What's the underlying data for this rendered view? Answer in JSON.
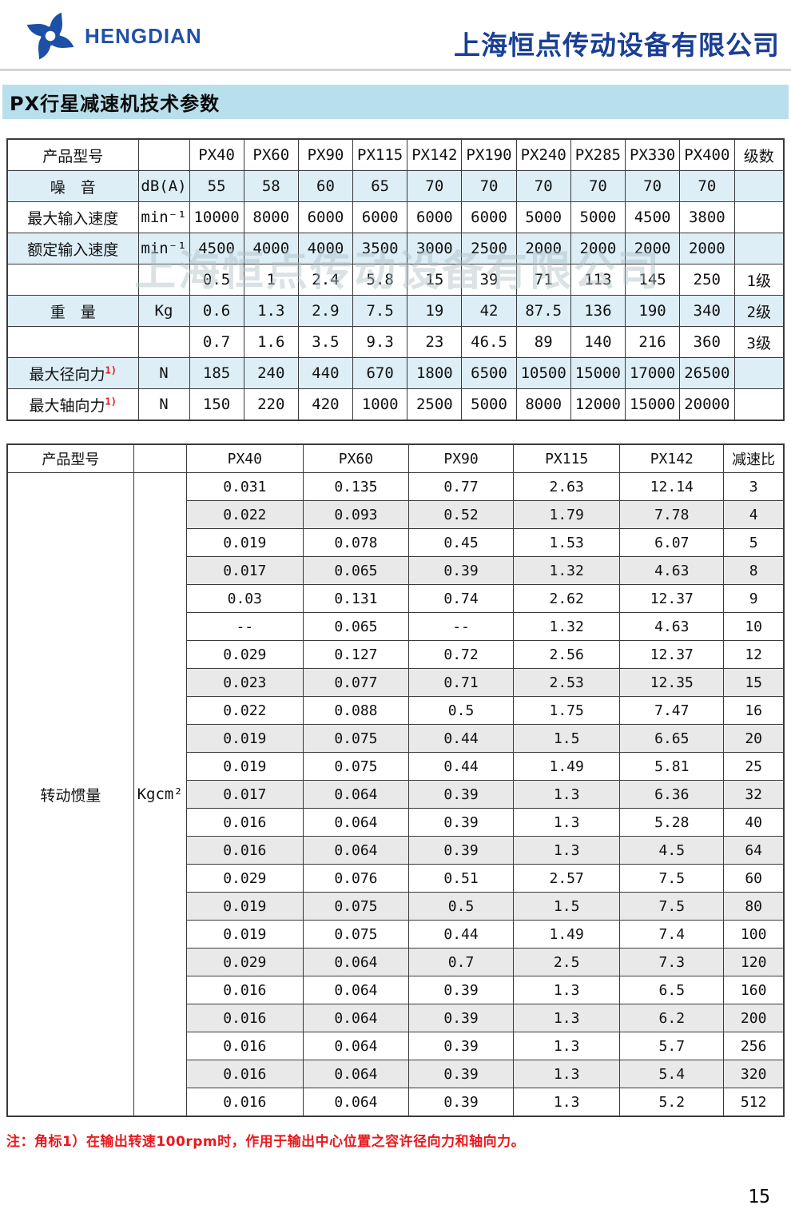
{
  "header": {
    "logo_text": "HENGDIAN",
    "company_name": "上海恒点传动设备有限公司"
  },
  "page_title": "PX行星减速机技术参数",
  "watermark": "上海恒点传动设备有限公司",
  "colors": {
    "brand_blue": "#2050a8",
    "company_navy": "#1a3f94",
    "title_bar_bg": "#b7dfec",
    "table1_shaded_row": "#ddeef6",
    "table2_shaded_row": "#e9e9e9",
    "note_red": "#e8191e"
  },
  "table1": {
    "header": {
      "col1": "产品型号",
      "col2": "",
      "models": [
        "PX40",
        "PX60",
        "PX90",
        "PX115",
        "PX142",
        "PX190",
        "PX240",
        "PX285",
        "PX330",
        "PX400"
      ],
      "last": "级数"
    },
    "rows": [
      {
        "label": "噪　音",
        "sup": "",
        "unit": "dB(A)",
        "values": [
          "55",
          "58",
          "60",
          "65",
          "70",
          "70",
          "70",
          "70",
          "70",
          "70"
        ],
        "last": "",
        "shaded": true
      },
      {
        "label": "最大输入速度",
        "sup": "",
        "unit": "min⁻¹",
        "values": [
          "10000",
          "8000",
          "6000",
          "6000",
          "6000",
          "6000",
          "5000",
          "5000",
          "4500",
          "3800"
        ],
        "last": "",
        "shaded": false
      },
      {
        "label": "额定输入速度",
        "sup": "",
        "unit": "min⁻¹",
        "values": [
          "4500",
          "4000",
          "4000",
          "3500",
          "3000",
          "2500",
          "2000",
          "2000",
          "2000",
          "2000"
        ],
        "last": "",
        "shaded": true
      },
      {
        "label": "",
        "sup": "",
        "unit": "",
        "values": [
          "0.5",
          "1",
          "2.4",
          "5.8",
          "15",
          "39",
          "71",
          "113",
          "145",
          "250"
        ],
        "last": "1级",
        "shaded": false
      },
      {
        "label": "重　量",
        "sup": "",
        "unit": "Kg",
        "values": [
          "0.6",
          "1.3",
          "2.9",
          "7.5",
          "19",
          "42",
          "87.5",
          "136",
          "190",
          "340"
        ],
        "last": "2级",
        "shaded": true
      },
      {
        "label": "",
        "sup": "",
        "unit": "",
        "values": [
          "0.7",
          "1.6",
          "3.5",
          "9.3",
          "23",
          "46.5",
          "89",
          "140",
          "216",
          "360"
        ],
        "last": "3级",
        "shaded": false
      },
      {
        "label": "最大径向力",
        "sup": "1)",
        "unit": "N",
        "values": [
          "185",
          "240",
          "440",
          "670",
          "1800",
          "6500",
          "10500",
          "15000",
          "17000",
          "26500"
        ],
        "last": "",
        "shaded": true
      },
      {
        "label": "最大轴向力",
        "sup": "1)",
        "unit": "N",
        "values": [
          "150",
          "220",
          "420",
          "1000",
          "2500",
          "5000",
          "8000",
          "12000",
          "15000",
          "20000"
        ],
        "last": "",
        "shaded": false
      }
    ]
  },
  "table2": {
    "header": {
      "col1": "产品型号",
      "col2": "",
      "models": [
        "PX40",
        "PX60",
        "PX90",
        "PX115",
        "PX142"
      ],
      "last": "减速比"
    },
    "row_label": "转动惯量",
    "row_unit": "Kgcm²",
    "rows": [
      {
        "values": [
          "0.031",
          "0.135",
          "0.77",
          "2.63",
          "12.14"
        ],
        "ratio": "3",
        "shaded": false
      },
      {
        "values": [
          "0.022",
          "0.093",
          "0.52",
          "1.79",
          "7.78"
        ],
        "ratio": "4",
        "shaded": true
      },
      {
        "values": [
          "0.019",
          "0.078",
          "0.45",
          "1.53",
          "6.07"
        ],
        "ratio": "5",
        "shaded": false
      },
      {
        "values": [
          "0.017",
          "0.065",
          "0.39",
          "1.32",
          "4.63"
        ],
        "ratio": "8",
        "shaded": true
      },
      {
        "values": [
          "0.03",
          "0.131",
          "0.74",
          "2.62",
          "12.37"
        ],
        "ratio": "9",
        "shaded": false
      },
      {
        "values": [
          "--",
          "0.065",
          "--",
          "1.32",
          "4.63"
        ],
        "ratio": "10",
        "shaded": false
      },
      {
        "values": [
          "0.029",
          "0.127",
          "0.72",
          "2.56",
          "12.37"
        ],
        "ratio": "12",
        "shaded": false
      },
      {
        "values": [
          "0.023",
          "0.077",
          "0.71",
          "2.53",
          "12.35"
        ],
        "ratio": "15",
        "shaded": true
      },
      {
        "values": [
          "0.022",
          "0.088",
          "0.5",
          "1.75",
          "7.47"
        ],
        "ratio": "16",
        "shaded": false
      },
      {
        "values": [
          "0.019",
          "0.075",
          "0.44",
          "1.5",
          "6.65"
        ],
        "ratio": "20",
        "shaded": true
      },
      {
        "values": [
          "0.019",
          "0.075",
          "0.44",
          "1.49",
          "5.81"
        ],
        "ratio": "25",
        "shaded": false
      },
      {
        "values": [
          "0.017",
          "0.064",
          "0.39",
          "1.3",
          "6.36"
        ],
        "ratio": "32",
        "shaded": true
      },
      {
        "values": [
          "0.016",
          "0.064",
          "0.39",
          "1.3",
          "5.28"
        ],
        "ratio": "40",
        "shaded": false
      },
      {
        "values": [
          "0.016",
          "0.064",
          "0.39",
          "1.3",
          "4.5"
        ],
        "ratio": "64",
        "shaded": true
      },
      {
        "values": [
          "0.029",
          "0.076",
          "0.51",
          "2.57",
          "7.5"
        ],
        "ratio": "60",
        "shaded": false
      },
      {
        "values": [
          "0.019",
          "0.075",
          "0.5",
          "1.5",
          "7.5"
        ],
        "ratio": "80",
        "shaded": true
      },
      {
        "values": [
          "0.019",
          "0.075",
          "0.44",
          "1.49",
          "7.4"
        ],
        "ratio": "100",
        "shaded": false
      },
      {
        "values": [
          "0.029",
          "0.064",
          "0.7",
          "2.5",
          "7.3"
        ],
        "ratio": "120",
        "shaded": true
      },
      {
        "values": [
          "0.016",
          "0.064",
          "0.39",
          "1.3",
          "6.5"
        ],
        "ratio": "160",
        "shaded": false
      },
      {
        "values": [
          "0.016",
          "0.064",
          "0.39",
          "1.3",
          "6.2"
        ],
        "ratio": "200",
        "shaded": true
      },
      {
        "values": [
          "0.016",
          "0.064",
          "0.39",
          "1.3",
          "5.7"
        ],
        "ratio": "256",
        "shaded": false
      },
      {
        "values": [
          "0.016",
          "0.064",
          "0.39",
          "1.3",
          "5.4"
        ],
        "ratio": "320",
        "shaded": true
      },
      {
        "values": [
          "0.016",
          "0.064",
          "0.39",
          "1.3",
          "5.2"
        ],
        "ratio": "512",
        "shaded": false
      }
    ]
  },
  "footnote": "注：角标1）在输出转速100rpm时，作用于输出中心位置之容许径向力和轴向力。",
  "page_number": "15"
}
